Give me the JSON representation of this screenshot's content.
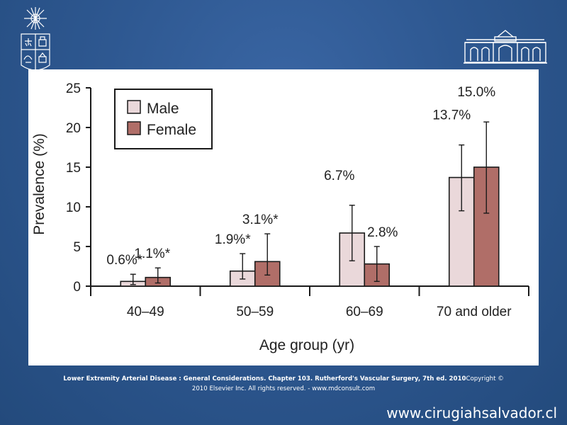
{
  "caption": {
    "bold": "Lower Extremity Arterial Disease  :  General Considerations. Chapter 103. Rutherford's Vascular Surgery, 7th ed. 2010",
    "rest_line1": "Copyright ©",
    "line2": "2010 Elsevier Inc. All rights reserved. - www.mdconsult.com"
  },
  "website": "www.cirugiahsalvador.cl",
  "colors": {
    "background": "#2e5891",
    "male": "#ead8da",
    "female": "#b06e68",
    "bar_stroke": "#1a1a1a"
  },
  "chart_data": {
    "type": "bar",
    "xlabel": "Age group (yr)",
    "ylabel": "Prevalence (%)",
    "ylim": [
      0,
      25
    ],
    "yticks": [
      0,
      5,
      10,
      15,
      20,
      25
    ],
    "categories": [
      "40–49",
      "50–59",
      "60–69",
      "70 and older"
    ],
    "series": [
      {
        "name": "Male",
        "values": [
          0.6,
          1.9,
          6.7,
          13.7
        ],
        "error_low": [
          0.2,
          0.9,
          3.2,
          9.5
        ],
        "error_high": [
          1.5,
          4.1,
          10.2,
          17.8
        ],
        "labels": [
          "0.6%*",
          "1.9%*",
          "6.7%",
          "13.7%"
        ]
      },
      {
        "name": "Female",
        "values": [
          1.1,
          3.1,
          2.8,
          15.0
        ],
        "error_low": [
          0.4,
          1.4,
          0.6,
          9.2
        ],
        "error_high": [
          2.3,
          6.6,
          5.0,
          20.7
        ],
        "labels": [
          "1.1%*",
          "3.1%*",
          "2.8%",
          "15.0%"
        ]
      }
    ],
    "legend_position": "top-left",
    "grid": false
  }
}
